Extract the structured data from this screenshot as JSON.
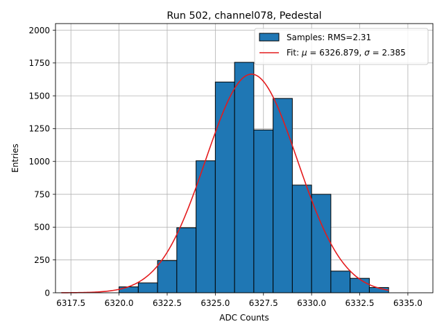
{
  "chart_data": {
    "type": "bar",
    "title": "Run 502, channel078, Pedestal",
    "xlabel": "ADC Counts",
    "ylabel": "Entries",
    "xlim": [
      6316.7,
      6336.3
    ],
    "ylim": [
      0,
      2050
    ],
    "xticks": [
      6317.5,
      6320.0,
      6322.5,
      6325.0,
      6327.5,
      6330.0,
      6332.5,
      6335.0
    ],
    "xtick_labels": [
      "6317.5",
      "6320.0",
      "6322.5",
      "6325.0",
      "6327.5",
      "6330.0",
      "6332.5",
      "6335.0"
    ],
    "yticks": [
      0,
      250,
      500,
      750,
      1000,
      1250,
      1500,
      1750,
      2000
    ],
    "ytick_labels": [
      "0",
      "250",
      "500",
      "750",
      "1000",
      "1250",
      "1500",
      "1750",
      "2000"
    ],
    "grid": true,
    "legend_position": "top-right",
    "series": [
      {
        "name": "Samples: RMS=2.31",
        "type": "histogram",
        "color": "#1f77b4",
        "edge_color": "#000000",
        "bin_width": 1.0,
        "bin_lefts": [
          6320,
          6321,
          6322,
          6323,
          6324,
          6325,
          6326,
          6327,
          6328,
          6329,
          6330,
          6331,
          6332,
          6333
        ],
        "values": [
          45,
          75,
          245,
          495,
          1005,
          1605,
          1755,
          1240,
          1480,
          820,
          750,
          165,
          110,
          40
        ]
      },
      {
        "name": "Fit: μ = 6326.879, σ = 2.385",
        "type": "line",
        "color": "#e41a1c",
        "mu": 6326.879,
        "sigma": 2.385,
        "amplitude": 1665,
        "x_range": [
          6317.0,
          6334.0
        ]
      }
    ],
    "legend": {
      "samples_label": "Samples: RMS=2.31",
      "fit_prefix": "Fit: ",
      "mu_symbol": "μ",
      "mu_value": " = 6326.879, ",
      "sigma_symbol": "σ",
      "sigma_value": " = 2.385"
    }
  }
}
